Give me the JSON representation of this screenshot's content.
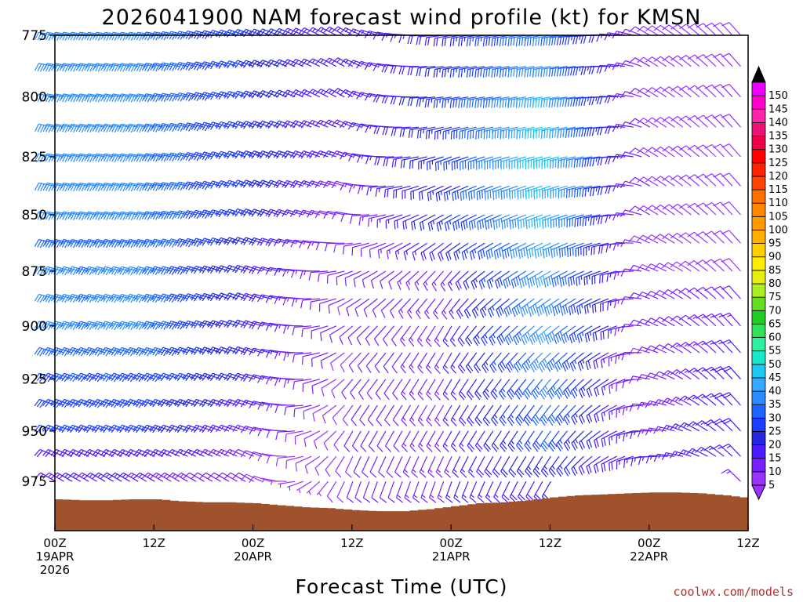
{
  "chart_data": {
    "type": "wind-barb-time-height",
    "title": "2026041900 NAM forecast wind profile (kt) for KMSN",
    "xlabel": "Forecast Time (UTC)",
    "ylabel": "",
    "credit": "coolwx.com/models",
    "y_axis": {
      "units": "hPa",
      "reversed": true,
      "range": [
        775,
        1000
      ],
      "ticks": [
        775,
        800,
        825,
        850,
        875,
        900,
        925,
        950,
        975
      ]
    },
    "x_axis": {
      "units": "forecast hour",
      "range": [
        0,
        84
      ],
      "ticks": [
        {
          "hour": 0,
          "line1": "00Z",
          "line2": "19APR",
          "line3": "2026"
        },
        {
          "hour": 12,
          "line1": "12Z",
          "line2": "",
          "line3": ""
        },
        {
          "hour": 24,
          "line1": "00Z",
          "line2": "20APR",
          "line3": ""
        },
        {
          "hour": 36,
          "line1": "12Z",
          "line2": "",
          "line3": ""
        },
        {
          "hour": 48,
          "line1": "00Z",
          "line2": "21APR",
          "line3": ""
        },
        {
          "hour": 60,
          "line1": "12Z",
          "line2": "",
          "line3": ""
        },
        {
          "hour": 72,
          "line1": "00Z",
          "line2": "22APR",
          "line3": ""
        },
        {
          "hour": 84,
          "line1": "12Z",
          "line2": "",
          "line3": ""
        }
      ]
    },
    "colorbar": {
      "units": "kt",
      "levels": [
        5,
        10,
        15,
        20,
        25,
        30,
        35,
        40,
        45,
        50,
        55,
        60,
        65,
        70,
        75,
        80,
        85,
        90,
        95,
        100,
        105,
        110,
        115,
        120,
        125,
        130,
        135,
        140,
        145,
        150
      ],
      "colors": [
        "#9933ff",
        "#7a1fff",
        "#4d1aff",
        "#2626e0",
        "#1a3dff",
        "#1a66ff",
        "#2b8cff",
        "#33aaff",
        "#1ec8f0",
        "#1ae6cc",
        "#2ef0a0",
        "#33e05a",
        "#22cc22",
        "#66dd22",
        "#aaee22",
        "#e6ee11",
        "#ffee00",
        "#ffd000",
        "#ffb000",
        "#ff9a00",
        "#ff8800",
        "#ff7000",
        "#ff4400",
        "#ff2200",
        "#ff0000",
        "#ee0044",
        "#ee1077",
        "#ff22aa",
        "#ff00cc",
        "#ee00ff"
      ]
    },
    "wind_profile": {
      "times_hours": [
        0,
        12,
        24,
        36,
        48,
        60,
        72,
        84
      ],
      "levels_hpa": [
        775,
        800,
        825,
        850,
        875,
        900,
        925,
        950,
        975
      ],
      "speed_kt": [
        [
          35,
          35,
          25,
          15,
          20,
          35,
          10,
          10
        ],
        [
          35,
          35,
          25,
          15,
          25,
          45,
          10,
          10
        ],
        [
          35,
          35,
          25,
          15,
          25,
          50,
          10,
          10
        ],
        [
          35,
          35,
          25,
          10,
          25,
          45,
          10,
          10
        ],
        [
          35,
          35,
          20,
          10,
          15,
          40,
          10,
          10
        ],
        [
          35,
          35,
          20,
          10,
          15,
          40,
          10,
          15
        ],
        [
          30,
          30,
          20,
          10,
          15,
          35,
          10,
          20
        ],
        [
          25,
          25,
          15,
          10,
          15,
          30,
          15,
          20
        ],
        [
          15,
          15,
          10,
          10,
          15,
          20,
          20,
          15
        ]
      ],
      "direction_deg": [
        [
          280,
          280,
          290,
          300,
          260,
          260,
          300,
          320
        ],
        [
          280,
          280,
          290,
          300,
          260,
          260,
          300,
          320
        ],
        [
          280,
          280,
          290,
          290,
          250,
          255,
          300,
          320
        ],
        [
          280,
          280,
          290,
          280,
          240,
          250,
          300,
          320
        ],
        [
          285,
          285,
          290,
          250,
          220,
          240,
          290,
          320
        ],
        [
          285,
          285,
          290,
          230,
          210,
          230,
          290,
          320
        ],
        [
          290,
          290,
          290,
          220,
          210,
          220,
          280,
          320
        ],
        [
          290,
          290,
          290,
          210,
          210,
          215,
          270,
          320
        ],
        [
          300,
          300,
          300,
          200,
          200,
          210,
          260,
          320
        ]
      ]
    },
    "surface_pressure_hpa": {
      "hours": [
        0,
        3,
        6,
        9,
        12,
        15,
        18,
        21,
        24,
        27,
        30,
        33,
        36,
        39,
        42,
        45,
        48,
        51,
        54,
        57,
        60,
        63,
        66,
        69,
        72,
        75,
        78,
        81,
        84
      ],
      "values": [
        984,
        984.5,
        984.5,
        984,
        984,
        985,
        985.5,
        985.5,
        986,
        987,
        988,
        988.5,
        989.5,
        990,
        990,
        989,
        987.5,
        986,
        985.5,
        984.5,
        983,
        982,
        981.5,
        981,
        980.5,
        980.5,
        981,
        982,
        983.5
      ]
    }
  }
}
